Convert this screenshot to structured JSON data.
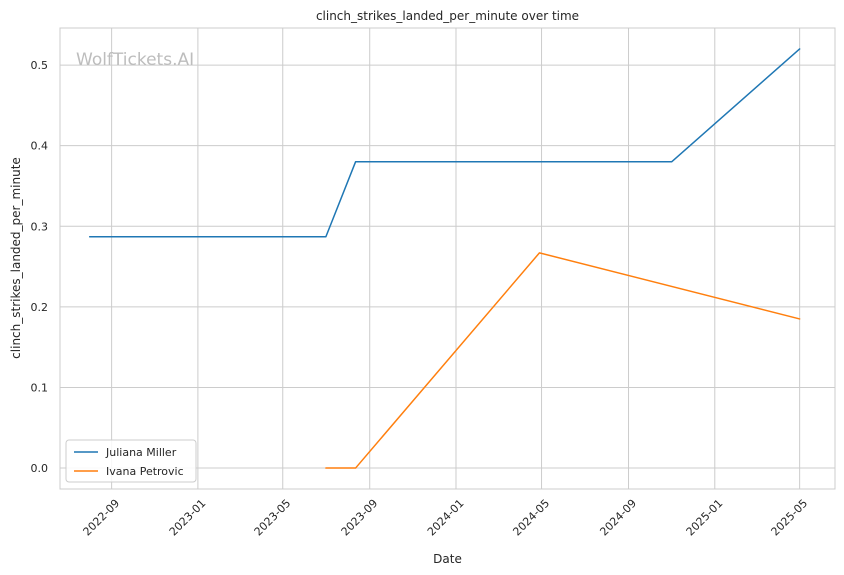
{
  "chart_data": {
    "type": "line",
    "title": "clinch_strikes_landed_per_minute over time",
    "xlabel": "Date",
    "ylabel": "clinch_strikes_landed_per_minute",
    "watermark": "WolfTickets.AI",
    "x_ticks": [
      "2022-09",
      "2023-01",
      "2023-05",
      "2023-09",
      "2024-01",
      "2024-05",
      "2024-09",
      "2025-01",
      "2025-05"
    ],
    "y_ticks": [
      "0.0",
      "0.1",
      "0.2",
      "0.3",
      "0.4",
      "0.5"
    ],
    "xlim": [
      "2022-06-20",
      "2025-06-20"
    ],
    "ylim": [
      -0.026,
      0.546
    ],
    "grid": true,
    "legend_position": "lower-left",
    "series": [
      {
        "name": "Juliana Miller",
        "color": "#1f77b4",
        "points": [
          {
            "x": "2022-08-01",
            "y": 0.287
          },
          {
            "x": "2023-07-01",
            "y": 0.287
          },
          {
            "x": "2023-08-12",
            "y": 0.38
          },
          {
            "x": "2024-11-01",
            "y": 0.38
          },
          {
            "x": "2025-05-01",
            "y": 0.52
          }
        ]
      },
      {
        "name": "Ivana Petrovic",
        "color": "#ff7f0e",
        "points": [
          {
            "x": "2023-07-01",
            "y": 0.0
          },
          {
            "x": "2023-08-12",
            "y": 0.0
          },
          {
            "x": "2024-04-28",
            "y": 0.267
          },
          {
            "x": "2025-05-01",
            "y": 0.185
          }
        ]
      }
    ]
  }
}
